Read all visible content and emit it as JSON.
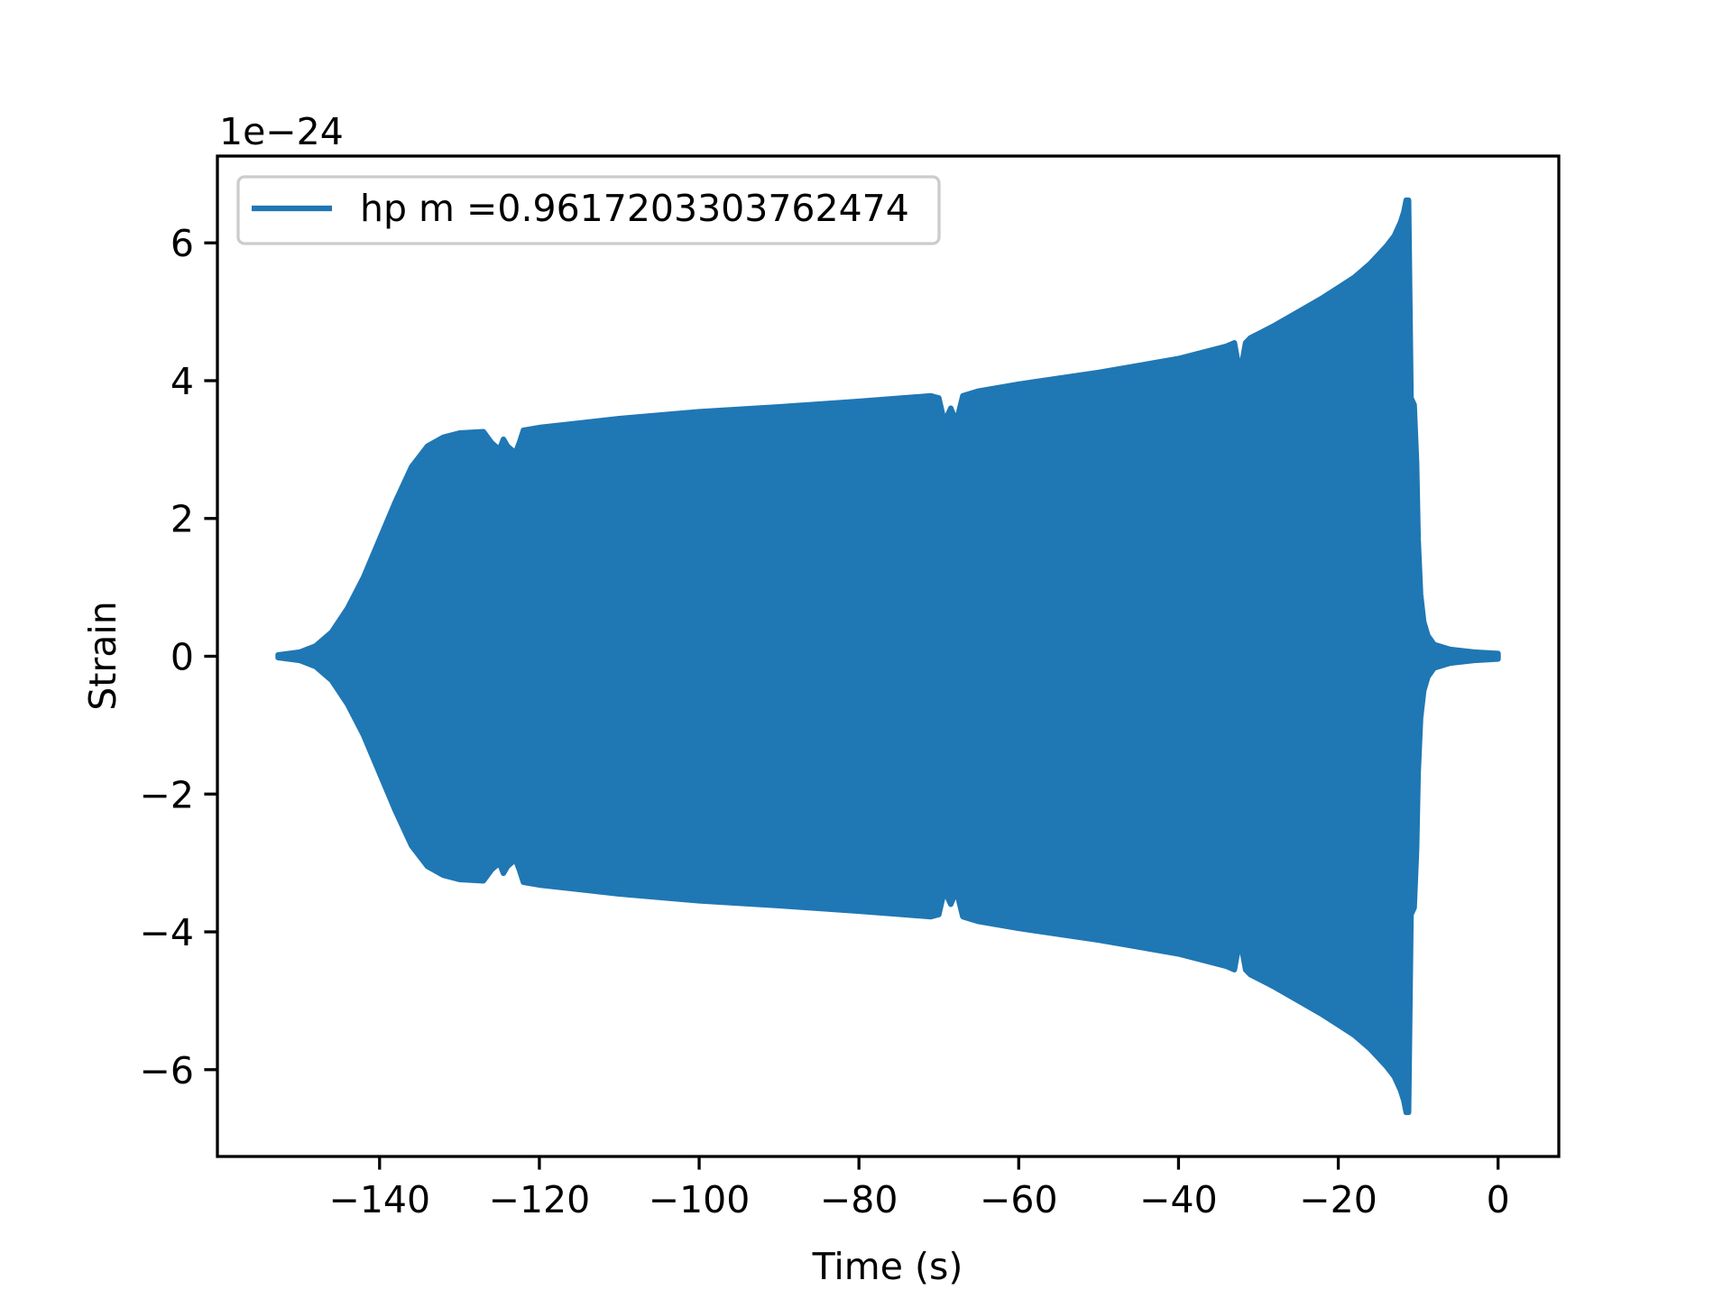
{
  "chart_data": {
    "type": "line",
    "title": "",
    "xlabel": "Time (s)",
    "ylabel": "Strain",
    "y_offset_text": "1e−24",
    "xlim": [
      -160.3,
      7.6
    ],
    "ylim": [
      -7.26,
      7.26
    ],
    "xticks": [
      -140,
      -120,
      -100,
      -80,
      -60,
      -40,
      -20,
      0
    ],
    "xtick_labels": [
      "−140",
      "−120",
      "−100",
      "−80",
      "−60",
      "−40",
      "−20",
      "0"
    ],
    "yticks": [
      -6,
      -4,
      -2,
      0,
      2,
      4,
      6
    ],
    "ytick_labels": [
      "−6",
      "−4",
      "−2",
      "0",
      "2",
      "4",
      "6"
    ],
    "grid": false,
    "legend_position": "upper-left",
    "series": [
      {
        "name": "hp m =0.9617203303762474",
        "color": "#1f77b4",
        "render": "oscillation envelope (upper, mirrored lower), units of 1e-24",
        "envelope_t": [
          -152.7,
          -150,
          -148,
          -146,
          -144,
          -142,
          -140,
          -138,
          -136,
          -134,
          -132,
          -130,
          -127,
          -126,
          -125,
          -124.5,
          -124,
          -123,
          -122.5,
          -122,
          -120,
          -110,
          -100,
          -90,
          -80,
          -71,
          -70,
          -69.3,
          -68.5,
          -67.8,
          -67,
          -65,
          -60,
          -50,
          -40,
          -34,
          -33,
          -32.3,
          -31.6,
          -31,
          -28,
          -25,
          -22,
          -20,
          -18,
          -16,
          -14,
          -13,
          -12.2,
          -11.8,
          -11.5,
          -11.2,
          -10.9,
          -10.5,
          -10.2,
          -10.0,
          -9.7,
          -9.3,
          -8.8,
          -8,
          -6,
          -3,
          0
        ],
        "envelope_upper": [
          0.02,
          0.06,
          0.15,
          0.35,
          0.7,
          1.15,
          1.7,
          2.25,
          2.75,
          3.05,
          3.18,
          3.24,
          3.26,
          3.1,
          3.0,
          3.15,
          3.05,
          2.95,
          3.1,
          3.28,
          3.32,
          3.45,
          3.55,
          3.62,
          3.7,
          3.78,
          3.75,
          3.4,
          3.6,
          3.4,
          3.78,
          3.85,
          3.95,
          4.12,
          4.32,
          4.5,
          4.55,
          4.1,
          4.55,
          4.62,
          4.8,
          5.0,
          5.2,
          5.35,
          5.5,
          5.7,
          5.95,
          6.1,
          6.3,
          6.45,
          6.62,
          6.62,
          3.75,
          3.65,
          2.8,
          1.7,
          0.9,
          0.5,
          0.3,
          0.17,
          0.1,
          0.06,
          0.04
        ]
      }
    ]
  }
}
